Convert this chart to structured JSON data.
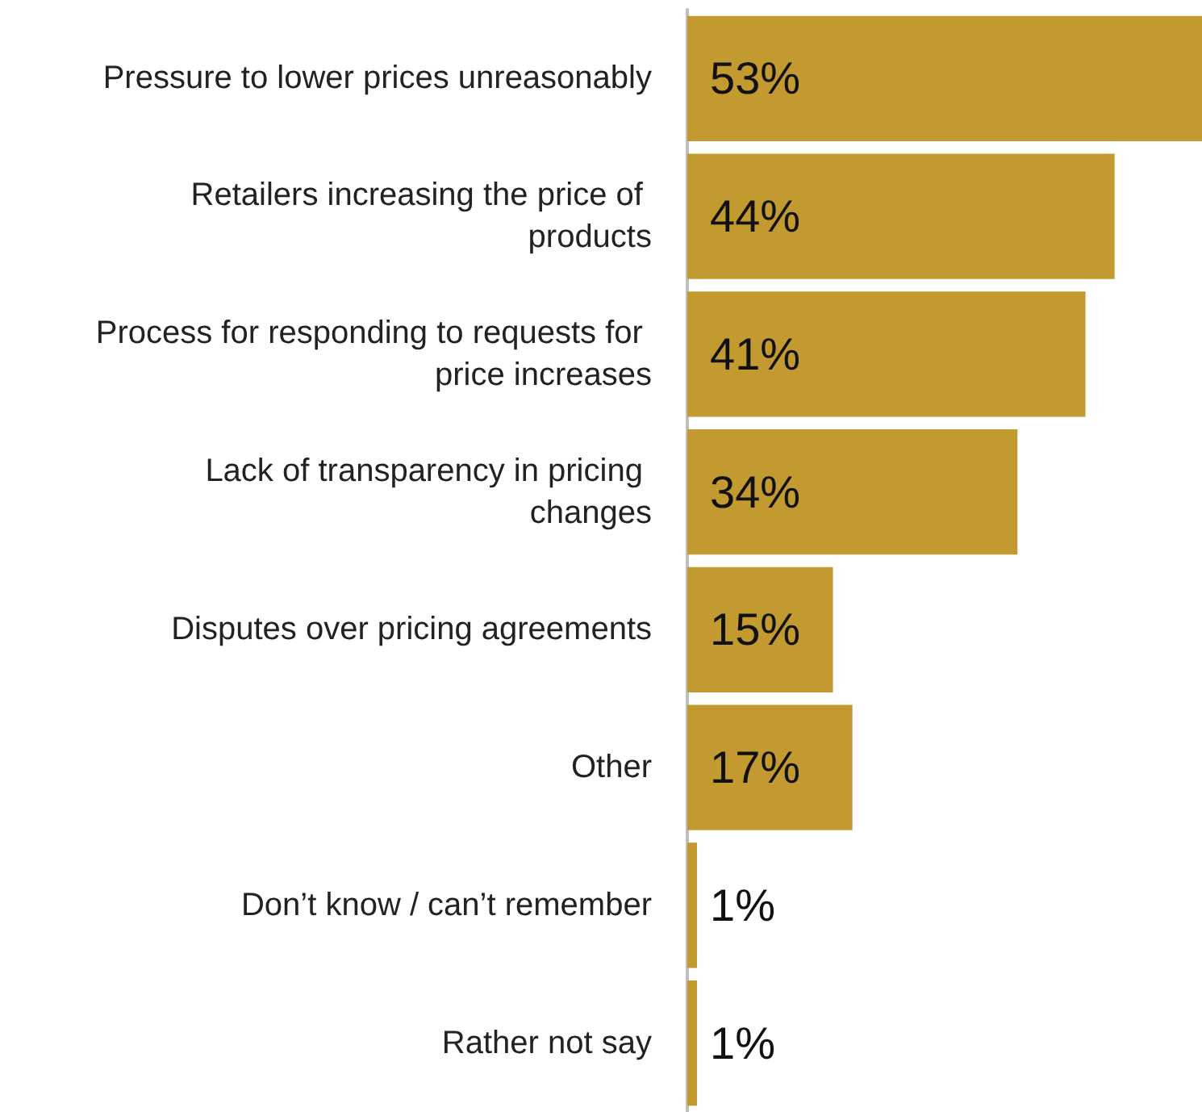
{
  "chart_data": {
    "type": "bar",
    "orientation": "horizontal",
    "categories": [
      "Pressure to lower prices unreasonably",
      "Retailers increasing the price of products",
      "Process for responding to requests for price increases",
      "Lack of transparency in pricing changes",
      "Disputes over pricing agreements",
      "Other",
      "Don’t know / can’t remember",
      "Rather not say"
    ],
    "values": [
      53,
      44,
      41,
      34,
      15,
      17,
      1,
      1
    ],
    "value_labels": [
      "53%",
      "44%",
      "41%",
      "34%",
      "15%",
      "17%",
      "1%",
      "1%"
    ],
    "color": "#c39a2f"
  }
}
